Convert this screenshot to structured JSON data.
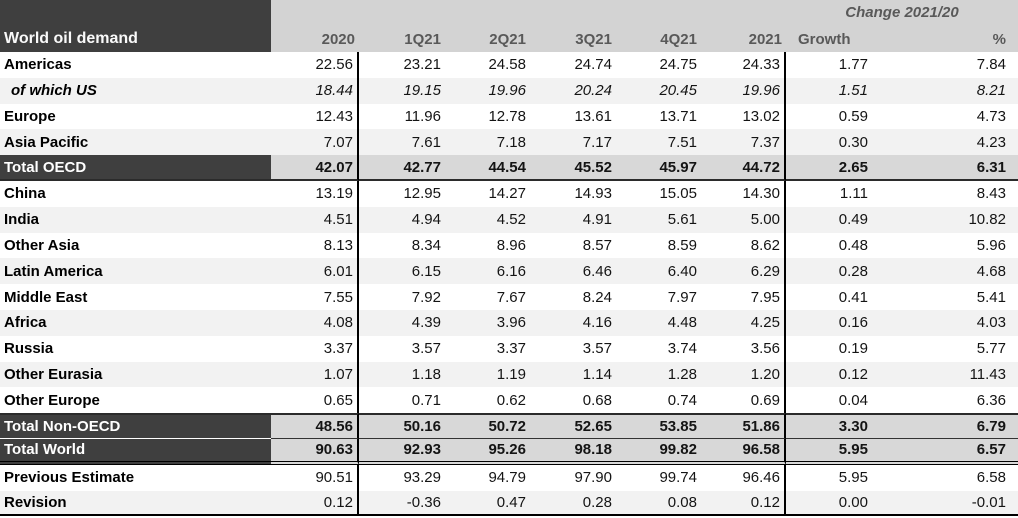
{
  "title": "World oil demand",
  "change_header": "Change 2021/20",
  "columns": [
    "2020",
    "1Q21",
    "2Q21",
    "3Q21",
    "4Q21",
    "2021",
    "Growth",
    "%"
  ],
  "colors": {
    "dark_header_bg": "#3f3f3f",
    "header_band_bg": "#d3d3d3",
    "total_value_bg": "#d8d8d8",
    "stripe_bg": "#f2f2f2",
    "header_text": "#595959",
    "rule_color": "#000000"
  },
  "chart_data": {
    "type": "table",
    "title": "World oil demand",
    "change_header": "Change 2021/20",
    "columns": [
      "2020",
      "1Q21",
      "2Q21",
      "3Q21",
      "4Q21",
      "2021",
      "Growth",
      "%"
    ],
    "rows": [
      {
        "label": "Americas",
        "style": "data",
        "values": [
          "22.56",
          "23.21",
          "24.58",
          "24.74",
          "24.75",
          "24.33",
          "1.77",
          "7.84"
        ]
      },
      {
        "label": "of which US",
        "style": "sub",
        "values": [
          "18.44",
          "19.15",
          "19.96",
          "20.24",
          "20.45",
          "19.96",
          "1.51",
          "8.21"
        ]
      },
      {
        "label": "Europe",
        "style": "data",
        "values": [
          "12.43",
          "11.96",
          "12.78",
          "13.61",
          "13.71",
          "13.02",
          "0.59",
          "4.73"
        ]
      },
      {
        "label": "Asia Pacific",
        "style": "data",
        "values": [
          "7.07",
          "7.61",
          "7.18",
          "7.17",
          "7.51",
          "7.37",
          "0.30",
          "4.23"
        ]
      },
      {
        "label": "Total OECD",
        "style": "total-oecd",
        "values": [
          "42.07",
          "42.77",
          "44.54",
          "45.52",
          "45.97",
          "44.72",
          "2.65",
          "6.31"
        ]
      },
      {
        "label": "China",
        "style": "data",
        "values": [
          "13.19",
          "12.95",
          "14.27",
          "14.93",
          "15.05",
          "14.30",
          "1.11",
          "8.43"
        ]
      },
      {
        "label": "India",
        "style": "data",
        "values": [
          "4.51",
          "4.94",
          "4.52",
          "4.91",
          "5.61",
          "5.00",
          "0.49",
          "10.82"
        ]
      },
      {
        "label": "Other Asia",
        "style": "data",
        "values": [
          "8.13",
          "8.34",
          "8.96",
          "8.57",
          "8.59",
          "8.62",
          "0.48",
          "5.96"
        ]
      },
      {
        "label": "Latin America",
        "style": "data",
        "values": [
          "6.01",
          "6.15",
          "6.16",
          "6.46",
          "6.40",
          "6.29",
          "0.28",
          "4.68"
        ]
      },
      {
        "label": "Middle East",
        "style": "data",
        "values": [
          "7.55",
          "7.92",
          "7.67",
          "8.24",
          "7.97",
          "7.95",
          "0.41",
          "5.41"
        ]
      },
      {
        "label": "Africa",
        "style": "data",
        "values": [
          "4.08",
          "4.39",
          "3.96",
          "4.16",
          "4.48",
          "4.25",
          "0.16",
          "4.03"
        ]
      },
      {
        "label": "Russia",
        "style": "data",
        "values": [
          "3.37",
          "3.57",
          "3.37",
          "3.57",
          "3.74",
          "3.56",
          "0.19",
          "5.77"
        ]
      },
      {
        "label": "Other Eurasia",
        "style": "data",
        "values": [
          "1.07",
          "1.18",
          "1.19",
          "1.14",
          "1.28",
          "1.20",
          "0.12",
          "11.43"
        ]
      },
      {
        "label": "Other Europe",
        "style": "data",
        "values": [
          "0.65",
          "0.71",
          "0.62",
          "0.68",
          "0.74",
          "0.69",
          "0.04",
          "6.36"
        ]
      },
      {
        "label": "Total Non-OECD",
        "style": "total-nonoecd",
        "values": [
          "48.56",
          "50.16",
          "50.72",
          "52.65",
          "53.85",
          "51.86",
          "3.30",
          "6.79"
        ]
      },
      {
        "label": "Total World",
        "style": "total-world",
        "values": [
          "90.63",
          "92.93",
          "95.26",
          "98.18",
          "99.82",
          "96.58",
          "5.95",
          "6.57"
        ]
      },
      {
        "label": "Previous Estimate",
        "style": "bold",
        "values": [
          "90.51",
          "93.29",
          "94.79",
          "97.90",
          "99.74",
          "96.46",
          "5.95",
          "6.58"
        ]
      },
      {
        "label": "Revision",
        "style": "bold",
        "values": [
          "0.12",
          "-0.36",
          "0.47",
          "0.28",
          "0.08",
          "0.12",
          "0.00",
          "-0.01"
        ]
      }
    ]
  }
}
